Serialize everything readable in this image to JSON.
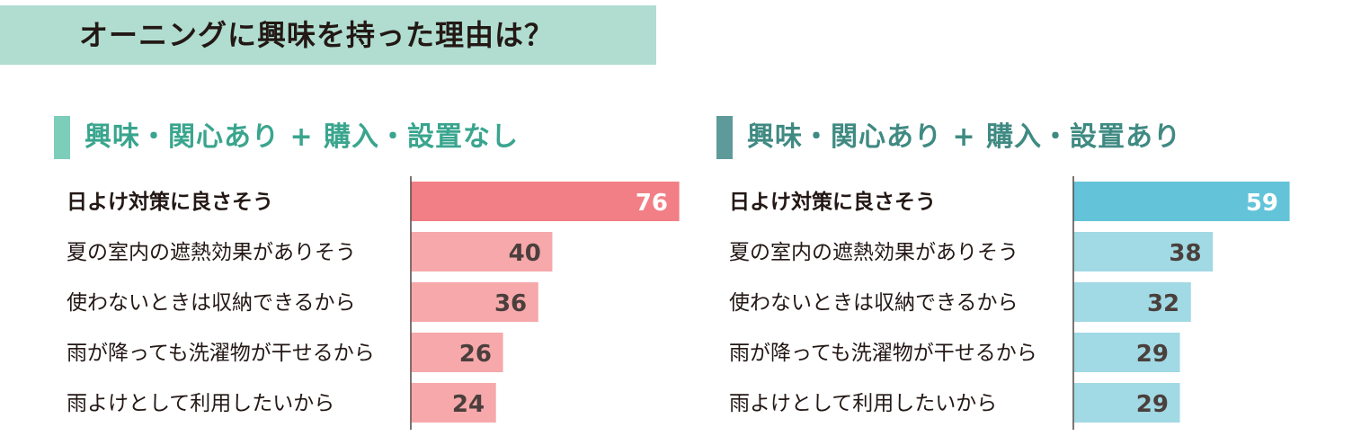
{
  "title": "オーニングに興味を持った理由は？",
  "colors": {
    "title_band": "#b0ddd0",
    "left_marker": "#7ccdb9",
    "left_heading": "#3aa58e",
    "right_marker": "#5f9a9a",
    "right_heading": "#3f8a82",
    "left_top_bar": "#f17f85",
    "left_bar": "#f6a8ab",
    "right_top_bar": "#63c4d9",
    "right_bar": "#a1d9e4",
    "axis": "#231815",
    "value_dark": "#4a3f3c",
    "value_light": "#ffffff"
  },
  "chart_data": [
    {
      "type": "bar",
      "orientation": "horizontal",
      "title": "興味・関心あり + 購入・設置なし",
      "categories": [
        "日よけ対策に良さそう",
        "夏の室内の遮熱効果がありそう",
        "使わないときは収納できるから",
        "雨が降っても洗濯物が干せるから",
        "雨よけとして利用したいから"
      ],
      "values": [
        76,
        40,
        36,
        26,
        24
      ],
      "xlim": [
        0,
        76
      ],
      "grid": false
    },
    {
      "type": "bar",
      "orientation": "horizontal",
      "title": "興味・関心あり + 購入・設置あり",
      "categories": [
        "日よけ対策に良さそう",
        "夏の室内の遮熱効果がありそう",
        "使わないときは収納できるから",
        "雨が降っても洗濯物が干せるから",
        "雨よけとして利用したいから"
      ],
      "values": [
        59,
        38,
        32,
        29,
        29
      ],
      "xlim": [
        0,
        59
      ],
      "grid": false
    }
  ]
}
